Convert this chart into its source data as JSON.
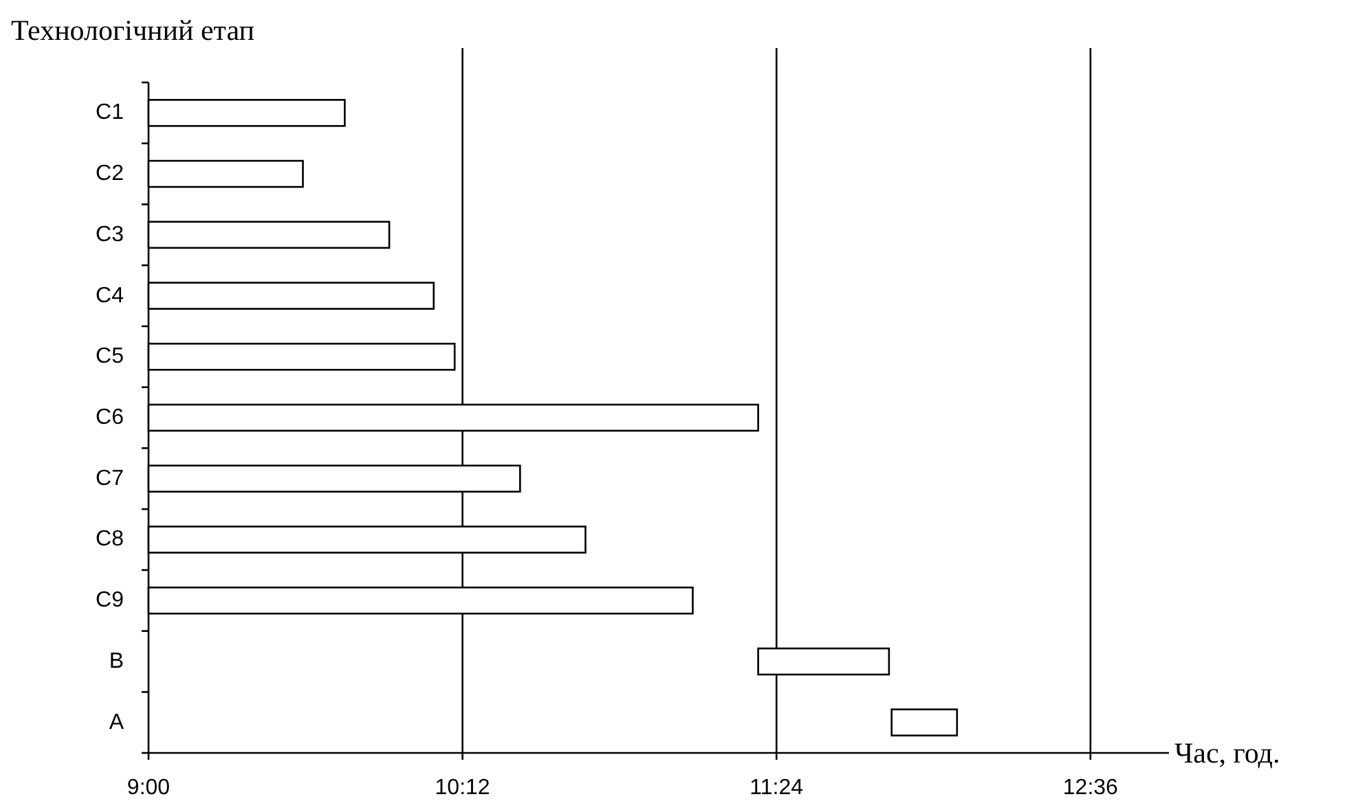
{
  "chart_data": {
    "type": "bar",
    "orientation": "horizontal",
    "ylabel": "Технологічний етап",
    "xlabel": "Час, год.",
    "categories": [
      "C1",
      "C2",
      "C3",
      "C4",
      "C5",
      "C6",
      "C7",
      "C8",
      "C9",
      "B",
      "A"
    ],
    "base": [
      9,
      9,
      9,
      9,
      9,
      9,
      9,
      9,
      9,
      11.33,
      11.84
    ],
    "values": [
      0.75,
      0.59,
      0.92,
      1.09,
      1.17,
      2.33,
      1.42,
      1.67,
      2.08,
      0.5,
      0.25
    ],
    "color": "#ffffff",
    "xlim": [
      9,
      12.9
    ],
    "xticks": [
      {
        "value": 9,
        "label": "9:00"
      },
      {
        "value": 10.2,
        "label": "10:12"
      },
      {
        "value": 11.4,
        "label": "11:24"
      },
      {
        "value": 12.6,
        "label": "12:36"
      }
    ],
    "grid": "x"
  }
}
